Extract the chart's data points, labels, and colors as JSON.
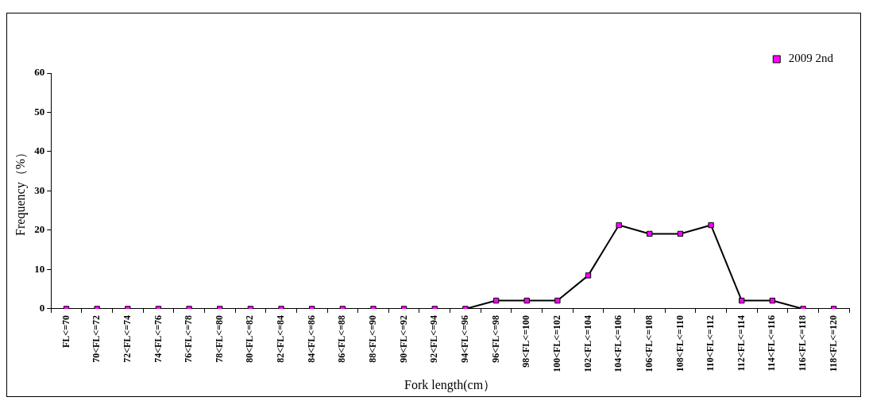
{
  "chart_data": {
    "type": "line",
    "xlabel": "Fork length(cm）",
    "ylabel": "Frequency（%）",
    "categories": [
      "FL<=70",
      "70<FL<=72",
      "72<FL<=74",
      "74<FL<=76",
      "76<FL<=78",
      "78<FL<=80",
      "80<FL<=82",
      "82<FL<=84",
      "84<FL<=86",
      "86<FL<=88",
      "88<FL<=90",
      "90<FL<=92",
      "92<FL<=94",
      "94<FL<=96",
      "96<FL<=98",
      "98<FL<=100",
      "100<FL<=102",
      "102<FL<=104",
      "104<FL<=106",
      "106<FL<=108",
      "108<FL<=110",
      "110<FL<=112",
      "112<FL<=114",
      "114<FL<=116",
      "116<FL<=118",
      "118<FL<=120"
    ],
    "series": [
      {
        "name": "2009 2nd",
        "color": "#ff00ff",
        "values": [
          0,
          0,
          0,
          0,
          0,
          0,
          0,
          0,
          0,
          0,
          0,
          0,
          0,
          0,
          2.1,
          2.1,
          2.1,
          8.5,
          21.3,
          19.1,
          19.1,
          21.3,
          2.1,
          2.1,
          0,
          0
        ]
      }
    ],
    "ylim": [
      0,
      60
    ],
    "yticks": [
      0,
      10,
      20,
      30,
      40,
      50,
      60
    ],
    "grid": false,
    "legend": "top right",
    "marker": "square",
    "line_style": "solid"
  }
}
